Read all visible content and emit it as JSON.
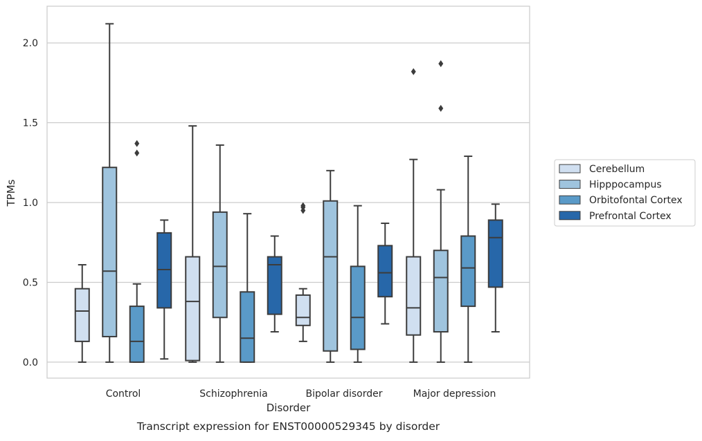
{
  "chart_data": {
    "type": "box",
    "title": "Transcript expression for ENST00000529345 by disorder",
    "xlabel": "Disorder",
    "ylabel": "TPMs",
    "ylim": [
      -0.1,
      2.23
    ],
    "yticks": [
      0.0,
      0.5,
      1.0,
      1.5,
      2.0
    ],
    "ytick_labels": [
      "0.0",
      "0.5",
      "1.0",
      "1.5",
      "2.0"
    ],
    "grid": "horizontal",
    "legend_position": "right",
    "categories": [
      "Control",
      "Schizophrenia",
      "Bipolar disorder",
      "Major depression"
    ],
    "series": [
      {
        "name": "Cerebellum",
        "color": "#d0dff0",
        "boxes": [
          {
            "whisker_low": 0.0,
            "q1": 0.13,
            "median": 0.32,
            "q3": 0.46,
            "whisker_high": 0.61,
            "outliers": []
          },
          {
            "whisker_low": 0.0,
            "q1": 0.01,
            "median": 0.38,
            "q3": 0.66,
            "whisker_high": 1.48,
            "outliers": []
          },
          {
            "whisker_low": 0.13,
            "q1": 0.23,
            "median": 0.28,
            "q3": 0.42,
            "whisker_high": 0.46,
            "outliers": [
              0.95,
              0.97,
              0.98
            ]
          },
          {
            "whisker_low": 0.0,
            "q1": 0.17,
            "median": 0.34,
            "q3": 0.66,
            "whisker_high": 1.27,
            "outliers": [
              1.82
            ]
          }
        ]
      },
      {
        "name": "Hipppocampus",
        "color": "#9fc4de",
        "boxes": [
          {
            "whisker_low": 0.0,
            "q1": 0.16,
            "median": 0.57,
            "q3": 1.22,
            "whisker_high": 2.12,
            "outliers": []
          },
          {
            "whisker_low": 0.0,
            "q1": 0.28,
            "median": 0.6,
            "q3": 0.94,
            "whisker_high": 1.36,
            "outliers": []
          },
          {
            "whisker_low": 0.0,
            "q1": 0.07,
            "median": 0.66,
            "q3": 1.01,
            "whisker_high": 1.2,
            "outliers": []
          },
          {
            "whisker_low": 0.0,
            "q1": 0.19,
            "median": 0.53,
            "q3": 0.7,
            "whisker_high": 1.08,
            "outliers": [
              1.59,
              1.87
            ]
          }
        ]
      },
      {
        "name": "Orbitofontal Cortex",
        "color": "#5a9ac8",
        "boxes": [
          {
            "whisker_low": 0.0,
            "q1": 0.0,
            "median": 0.13,
            "q3": 0.35,
            "whisker_high": 0.49,
            "outliers": [
              1.31,
              1.37
            ]
          },
          {
            "whisker_low": 0.0,
            "q1": 0.0,
            "median": 0.15,
            "q3": 0.44,
            "whisker_high": 0.93,
            "outliers": []
          },
          {
            "whisker_low": 0.0,
            "q1": 0.08,
            "median": 0.28,
            "q3": 0.6,
            "whisker_high": 0.98,
            "outliers": []
          },
          {
            "whisker_low": 0.0,
            "q1": 0.35,
            "median": 0.59,
            "q3": 0.79,
            "whisker_high": 1.29,
            "outliers": []
          }
        ]
      },
      {
        "name": "Prefrontal Cortex",
        "color": "#2767a9",
        "boxes": [
          {
            "whisker_low": 0.02,
            "q1": 0.34,
            "median": 0.58,
            "q3": 0.81,
            "whisker_high": 0.89,
            "outliers": []
          },
          {
            "whisker_low": 0.19,
            "q1": 0.3,
            "median": 0.61,
            "q3": 0.66,
            "whisker_high": 0.79,
            "outliers": []
          },
          {
            "whisker_low": 0.24,
            "q1": 0.41,
            "median": 0.56,
            "q3": 0.73,
            "whisker_high": 0.87,
            "outliers": []
          },
          {
            "whisker_low": 0.19,
            "q1": 0.47,
            "median": 0.78,
            "q3": 0.89,
            "whisker_high": 0.99,
            "outliers": []
          }
        ]
      }
    ]
  }
}
